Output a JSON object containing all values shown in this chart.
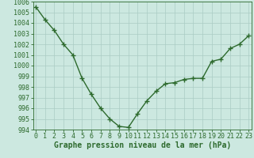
{
  "x": [
    0,
    1,
    2,
    3,
    4,
    5,
    6,
    7,
    8,
    9,
    10,
    11,
    12,
    13,
    14,
    15,
    16,
    17,
    18,
    19,
    20,
    21,
    22,
    23
  ],
  "y": [
    1005.5,
    1004.3,
    1003.3,
    1002.0,
    1001.0,
    998.8,
    997.3,
    996.0,
    995.0,
    994.3,
    994.2,
    995.5,
    996.7,
    997.6,
    998.3,
    998.4,
    998.7,
    998.8,
    998.8,
    1000.4,
    1000.6,
    1001.6,
    1002.0,
    1002.8
  ],
  "line_color": "#2d6a2d",
  "marker": "+",
  "marker_size": 5,
  "line_width": 1.0,
  "bg_color": "#cce8e0",
  "grid_color": "#aaccc4",
  "xlabel": "Graphe pression niveau de la mer (hPa)",
  "xlabel_fontsize": 7,
  "tick_fontsize": 6,
  "ylim": [
    994,
    1006
  ],
  "xlim": [
    -0.3,
    23.3
  ],
  "yticks": [
    994,
    995,
    996,
    997,
    998,
    999,
    1000,
    1001,
    1002,
    1003,
    1004,
    1005,
    1006
  ],
  "xticks": [
    0,
    1,
    2,
    3,
    4,
    5,
    6,
    7,
    8,
    9,
    10,
    11,
    12,
    13,
    14,
    15,
    16,
    17,
    18,
    19,
    20,
    21,
    22,
    23
  ]
}
